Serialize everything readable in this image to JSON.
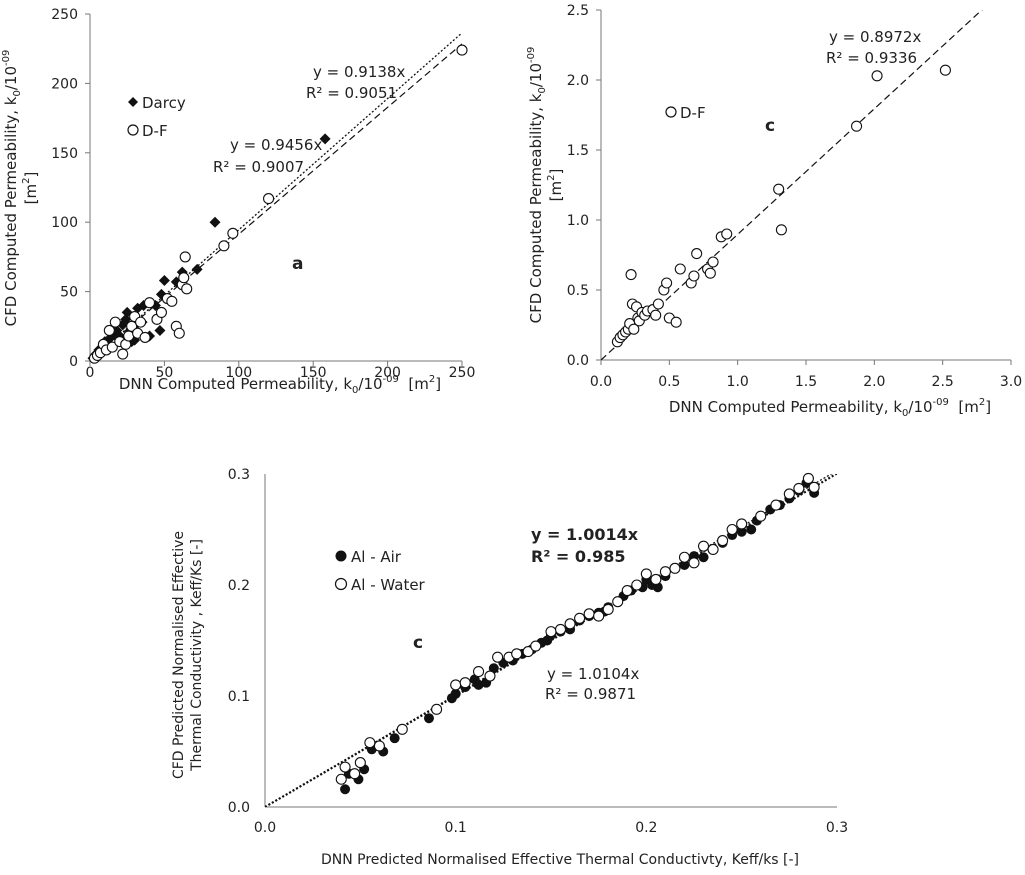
{
  "chart_data": [
    {
      "type": "scatter",
      "panel": "a",
      "xlabel": "DNN Computed Permeability, k0/10-09 [m2]",
      "ylabel": "CFD Computed Permeability, k0/10-09 [m2]",
      "xlim": [
        0,
        250
      ],
      "ylim": [
        0,
        250
      ],
      "xticks": [
        "0",
        "50",
        "100",
        "150",
        "200",
        "250"
      ],
      "yticks": [
        "0",
        "50",
        "100",
        "150",
        "200",
        "250"
      ],
      "grid": false,
      "legend": "upper-left",
      "series": [
        {
          "name": "Darcy",
          "marker": "diamond-filled",
          "points": [
            [
              2,
              2
            ],
            [
              4,
              5
            ],
            [
              6,
              8
            ],
            [
              8,
              10
            ],
            [
              10,
              14
            ],
            [
              12,
              12
            ],
            [
              14,
              17
            ],
            [
              16,
              20
            ],
            [
              18,
              22
            ],
            [
              20,
              18
            ],
            [
              22,
              26
            ],
            [
              24,
              30
            ],
            [
              25,
              35
            ],
            [
              27,
              22
            ],
            [
              28,
              14
            ],
            [
              30,
              25
            ],
            [
              30,
              15
            ],
            [
              32,
              38
            ],
            [
              35,
              28
            ],
            [
              36,
              40
            ],
            [
              40,
              18
            ],
            [
              44,
              40
            ],
            [
              47,
              22
            ],
            [
              48,
              48
            ],
            [
              50,
              58
            ],
            [
              58,
              57
            ],
            [
              62,
              64
            ],
            [
              72,
              66
            ],
            [
              84,
              100
            ],
            [
              158,
              160
            ]
          ],
          "trendline": {
            "label": "y = 0.9138x",
            "r2": "R² = 0.9051",
            "slope": 0.9138,
            "style": "dashed"
          }
        },
        {
          "name": "D-F",
          "marker": "circle-open",
          "points": [
            [
              3,
              2
            ],
            [
              5,
              4
            ],
            [
              7,
              6
            ],
            [
              9,
              12
            ],
            [
              11,
              8
            ],
            [
              13,
              22
            ],
            [
              15,
              10
            ],
            [
              17,
              28
            ],
            [
              20,
              14
            ],
            [
              22,
              5
            ],
            [
              24,
              12
            ],
            [
              26,
              18
            ],
            [
              28,
              25
            ],
            [
              30,
              32
            ],
            [
              32,
              20
            ],
            [
              34,
              28
            ],
            [
              37,
              17
            ],
            [
              40,
              42
            ],
            [
              45,
              30
            ],
            [
              48,
              35
            ],
            [
              52,
              45
            ],
            [
              55,
              43
            ],
            [
              58,
              25
            ],
            [
              60,
              20
            ],
            [
              62,
              55
            ],
            [
              63,
              60
            ],
            [
              64,
              75
            ],
            [
              65,
              52
            ],
            [
              90,
              83
            ],
            [
              96,
              92
            ],
            [
              120,
              117
            ],
            [
              250,
              224
            ]
          ],
          "trendline": {
            "label": "y = 0.9456x",
            "r2": "R² = 0.9007",
            "slope": 0.9456,
            "style": "dotted"
          }
        }
      ],
      "annotation": "a"
    },
    {
      "type": "scatter",
      "panel": "c",
      "xlabel": "DNN Computed Permeability, k0/10-09 [m2]",
      "ylabel": "CFD Computed Permeability, k0/10-09 [m2]",
      "xlim": [
        0,
        3.0
      ],
      "ylim": [
        0,
        2.5
      ],
      "xticks": [
        "0.0",
        "0.5",
        "1.0",
        "1.5",
        "2.0",
        "2.5",
        "3.0"
      ],
      "yticks": [
        "0.0",
        "0.5",
        "1.0",
        "1.5",
        "2.0",
        "2.5"
      ],
      "grid": false,
      "legend": "upper-left",
      "series": [
        {
          "name": "D-F",
          "marker": "circle-open",
          "points": [
            [
              0.12,
              0.13
            ],
            [
              0.14,
              0.16
            ],
            [
              0.16,
              0.18
            ],
            [
              0.18,
              0.2
            ],
            [
              0.2,
              0.22
            ],
            [
              0.21,
              0.26
            ],
            [
              0.22,
              0.61
            ],
            [
              0.23,
              0.4
            ],
            [
              0.24,
              0.22
            ],
            [
              0.26,
              0.38
            ],
            [
              0.27,
              0.3
            ],
            [
              0.28,
              0.28
            ],
            [
              0.3,
              0.34
            ],
            [
              0.32,
              0.32
            ],
            [
              0.34,
              0.35
            ],
            [
              0.38,
              0.36
            ],
            [
              0.4,
              0.32
            ],
            [
              0.42,
              0.4
            ],
            [
              0.46,
              0.5
            ],
            [
              0.48,
              0.55
            ],
            [
              0.5,
              0.3
            ],
            [
              0.55,
              0.27
            ],
            [
              0.58,
              0.65
            ],
            [
              0.66,
              0.55
            ],
            [
              0.68,
              0.6
            ],
            [
              0.7,
              0.76
            ],
            [
              0.78,
              0.65
            ],
            [
              0.8,
              0.62
            ],
            [
              0.82,
              0.7
            ],
            [
              0.88,
              0.88
            ],
            [
              0.92,
              0.9
            ],
            [
              1.3,
              1.22
            ],
            [
              1.32,
              0.93
            ],
            [
              1.87,
              1.67
            ],
            [
              2.02,
              2.03
            ],
            [
              2.52,
              2.07
            ]
          ],
          "trendline": {
            "label": "y = 0.8972x",
            "r2": "R² = 0.9336",
            "slope": 0.8972,
            "style": "dashed"
          }
        }
      ],
      "annotation": "c"
    },
    {
      "type": "scatter",
      "panel": "c",
      "xlabel": "DNN Predicted Normalised Effective Thermal Conductivty, Keff/ks [-]",
      "ylabel": "CFD Predicted Normalised Effective Thermal Conductivity , Keff/Ks [-]",
      "xlim": [
        0,
        0.3
      ],
      "ylim": [
        0,
        0.3
      ],
      "xticks": [
        "0.0",
        "0.1",
        "0.2",
        "0.3"
      ],
      "yticks": [
        "0.0",
        "0.1",
        "0.2",
        "0.3"
      ],
      "grid": false,
      "legend": "upper-left",
      "series": [
        {
          "name": "Al - Air",
          "marker": "circle-filled",
          "points": [
            [
              0.042,
              0.016
            ],
            [
              0.044,
              0.03
            ],
            [
              0.049,
              0.025
            ],
            [
              0.052,
              0.034
            ],
            [
              0.056,
              0.052
            ],
            [
              0.062,
              0.05
            ],
            [
              0.068,
              0.062
            ],
            [
              0.086,
              0.08
            ],
            [
              0.098,
              0.098
            ],
            [
              0.1,
              0.102
            ],
            [
              0.105,
              0.108
            ],
            [
              0.11,
              0.115
            ],
            [
              0.112,
              0.11
            ],
            [
              0.116,
              0.112
            ],
            [
              0.12,
              0.125
            ],
            [
              0.125,
              0.13
            ],
            [
              0.13,
              0.132
            ],
            [
              0.135,
              0.138
            ],
            [
              0.14,
              0.142
            ],
            [
              0.145,
              0.148
            ],
            [
              0.148,
              0.15
            ],
            [
              0.15,
              0.155
            ],
            [
              0.155,
              0.158
            ],
            [
              0.16,
              0.16
            ],
            [
              0.165,
              0.168
            ],
            [
              0.17,
              0.172
            ],
            [
              0.175,
              0.175
            ],
            [
              0.178,
              0.176
            ],
            [
              0.18,
              0.18
            ],
            [
              0.185,
              0.185
            ],
            [
              0.188,
              0.19
            ],
            [
              0.192,
              0.195
            ],
            [
              0.195,
              0.2
            ],
            [
              0.198,
              0.198
            ],
            [
              0.2,
              0.205
            ],
            [
              0.203,
              0.2
            ],
            [
              0.206,
              0.198
            ],
            [
              0.21,
              0.208
            ],
            [
              0.215,
              0.215
            ],
            [
              0.22,
              0.218
            ],
            [
              0.225,
              0.226
            ],
            [
              0.23,
              0.225
            ],
            [
              0.235,
              0.232
            ],
            [
              0.24,
              0.238
            ],
            [
              0.245,
              0.245
            ],
            [
              0.25,
              0.248
            ],
            [
              0.255,
              0.25
            ],
            [
              0.258,
              0.258
            ],
            [
              0.265,
              0.268
            ],
            [
              0.27,
              0.272
            ],
            [
              0.275,
              0.278
            ],
            [
              0.28,
              0.285
            ],
            [
              0.284,
              0.292
            ],
            [
              0.288,
              0.283
            ]
          ],
          "trendline": {
            "label": "y = 1.0014x",
            "r2": "R² = 0.985",
            "slope": 1.0014,
            "style": "dotted-bold"
          }
        },
        {
          "name": "Al - Water",
          "marker": "circle-open",
          "points": [
            [
              0.04,
              0.025
            ],
            [
              0.042,
              0.036
            ],
            [
              0.047,
              0.03
            ],
            [
              0.05,
              0.04
            ],
            [
              0.055,
              0.058
            ],
            [
              0.06,
              0.055
            ],
            [
              0.072,
              0.07
            ],
            [
              0.09,
              0.088
            ],
            [
              0.1,
              0.11
            ],
            [
              0.105,
              0.112
            ],
            [
              0.112,
              0.122
            ],
            [
              0.118,
              0.118
            ],
            [
              0.122,
              0.135
            ],
            [
              0.128,
              0.135
            ],
            [
              0.132,
              0.138
            ],
            [
              0.138,
              0.14
            ],
            [
              0.142,
              0.145
            ],
            [
              0.15,
              0.158
            ],
            [
              0.155,
              0.16
            ],
            [
              0.16,
              0.165
            ],
            [
              0.165,
              0.17
            ],
            [
              0.17,
              0.174
            ],
            [
              0.175,
              0.172
            ],
            [
              0.18,
              0.178
            ],
            [
              0.185,
              0.185
            ],
            [
              0.19,
              0.195
            ],
            [
              0.195,
              0.2
            ],
            [
              0.2,
              0.21
            ],
            [
              0.205,
              0.205
            ],
            [
              0.21,
              0.212
            ],
            [
              0.215,
              0.215
            ],
            [
              0.22,
              0.225
            ],
            [
              0.225,
              0.22
            ],
            [
              0.23,
              0.235
            ],
            [
              0.235,
              0.232
            ],
            [
              0.24,
              0.24
            ],
            [
              0.245,
              0.25
            ],
            [
              0.25,
              0.255
            ],
            [
              0.26,
              0.262
            ],
            [
              0.268,
              0.272
            ],
            [
              0.275,
              0.282
            ],
            [
              0.28,
              0.287
            ],
            [
              0.285,
              0.296
            ],
            [
              0.288,
              0.288
            ]
          ],
          "trendline": {
            "label": "y = 1.0104x",
            "r2": "R² = 0.9871",
            "slope": 1.0104,
            "style": "dotted"
          }
        }
      ],
      "annotation": "c"
    }
  ],
  "panels": [
    {
      "ylabel_line1": "CFD Computed Permeability, k",
      "ylabel_sub": "0",
      "ylabel_mid": "/10",
      "ylabel_sup": "-09",
      "ylabel_line2": "[m",
      "ylabel_line2_sup": "2",
      "ylabel_line2_end": "]",
      "xlabel_a": "DNN Computed Permeability, k",
      "xlabel_sub": "0",
      "xlabel_mid": "/10",
      "xlabel_sup": "-09",
      "xlabel_end": "  [m",
      "xlabel_end_sup": "2",
      "xlabel_end2": "]"
    },
    {
      "ylabel_line1": "CFD Computed Permeability, k",
      "ylabel_sub": "0",
      "ylabel_mid": "/10",
      "ylabel_sup": "-09",
      "ylabel_line2": "[m",
      "ylabel_line2_sup": "2",
      "ylabel_line2_end": "]",
      "xlabel_a": "DNN Computed Permeability, k",
      "xlabel_sub": "0",
      "xlabel_mid": "/10",
      "xlabel_sup": "-09",
      "xlabel_end": "  [m",
      "xlabel_end_sup": "2",
      "xlabel_end2": "]"
    },
    {
      "ylabel_line1": "CFD Predicted Normalised Effective",
      "ylabel_line2": "Thermal Conductivity , Keff/Ks [-]",
      "xlabel": "DNN Predicted Normalised Effective Thermal Conductivty, Keff/ks [-]"
    }
  ]
}
